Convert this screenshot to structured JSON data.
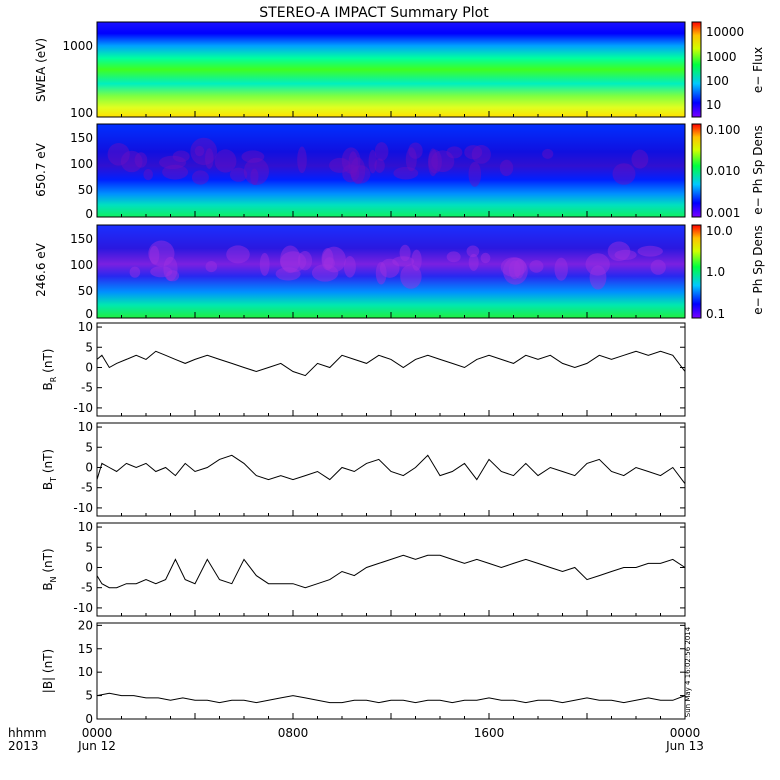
{
  "title": "STEREO-A IMPACT Summary Plot",
  "time_axis": {
    "corner_label_1": "hhmm",
    "corner_label_2": "2013",
    "ticks": [
      {
        "hour": 0,
        "label": "0000",
        "sublabel": "Jun 12"
      },
      {
        "hour": 8,
        "label": "0800",
        "sublabel": ""
      },
      {
        "hour": 16,
        "label": "1600",
        "sublabel": ""
      },
      {
        "hour": 24,
        "label": "0000",
        "sublabel": "Jun 13"
      }
    ],
    "range_hours": [
      0,
      24
    ]
  },
  "timestamp": "Sun May  4 16:02:56 2014",
  "panels": [
    {
      "id": "swea",
      "ylabel": "SWEA (eV)",
      "colorbar_label": "e− Flux",
      "yticks": [
        "1000",
        "100"
      ],
      "cb_ticks": [
        "10000",
        "1000",
        "100",
        "10"
      ]
    },
    {
      "id": "pad650",
      "ylabel": "650.7 eV",
      "colorbar_label": "e− Ph Sp Dens",
      "yticks": [
        "150",
        "100",
        "50",
        "0"
      ],
      "cb_ticks": [
        "0.100",
        "0.010",
        "0.001"
      ]
    },
    {
      "id": "pad246",
      "ylabel": "246.6 eV",
      "colorbar_label": "e− Ph Sp Dens",
      "yticks": [
        "150",
        "100",
        "50",
        "0"
      ],
      "cb_ticks": [
        "10.0",
        "1.0",
        "0.1"
      ]
    }
  ],
  "chart_data": [
    {
      "type": "heatmap",
      "title": "STEREO-A IMPACT Summary Plot",
      "ylabel": "SWEA (eV)",
      "y_scale": "log",
      "ylim": [
        90,
        2000
      ],
      "colorbar": {
        "label": "e− Flux",
        "scale": "log",
        "range": [
          5,
          15000
        ]
      },
      "description_values": {
        "100": 6000,
        "300": 1200,
        "1000": 40
      }
    },
    {
      "type": "heatmap",
      "ylabel": "650.7 eV",
      "ylim": [
        0,
        180
      ],
      "colorbar": {
        "label": "e− Ph Sp Dens",
        "scale": "log",
        "range": [
          0.001,
          0.1
        ]
      }
    },
    {
      "type": "heatmap",
      "ylabel": "246.6 eV",
      "ylim": [
        0,
        180
      ],
      "colorbar": {
        "label": "e− Ph Sp Dens",
        "scale": "log",
        "range": [
          0.1,
          10.0
        ]
      }
    },
    {
      "type": "line",
      "id": "br",
      "ylabel": "B",
      "ylabel_sub": "R",
      "ylabel_unit": "(nT)",
      "ylim": [
        -12,
        11
      ],
      "yticks": [
        10,
        5,
        0,
        -5,
        -10
      ],
      "x": [
        0,
        0.2,
        0.5,
        0.8,
        1.2,
        1.6,
        2.0,
        2.4,
        2.8,
        3.2,
        3.6,
        4.0,
        4.5,
        5.0,
        5.5,
        6.0,
        6.5,
        7.0,
        7.5,
        8.0,
        8.5,
        9.0,
        9.5,
        10.0,
        10.5,
        11.0,
        11.5,
        12.0,
        12.5,
        13.0,
        13.5,
        14.0,
        14.5,
        15.0,
        15.5,
        16.0,
        16.5,
        17.0,
        17.5,
        18.0,
        18.5,
        19.0,
        19.5,
        20.0,
        20.5,
        21.0,
        21.5,
        22.0,
        22.5,
        23.0,
        23.5,
        24.0
      ],
      "y": [
        2,
        3,
        0,
        1,
        2,
        3,
        2,
        4,
        3,
        2,
        1,
        2,
        3,
        2,
        1,
        0,
        -1,
        0,
        1,
        -1,
        -2,
        1,
        0,
        3,
        2,
        1,
        3,
        2,
        0,
        2,
        3,
        2,
        1,
        0,
        2,
        3,
        2,
        1,
        3,
        2,
        3,
        1,
        0,
        1,
        3,
        2,
        3,
        4,
        3,
        4,
        3,
        -1
      ]
    },
    {
      "type": "line",
      "id": "bt",
      "ylabel": "B",
      "ylabel_sub": "T",
      "ylabel_unit": "(nT)",
      "ylim": [
        -12,
        11
      ],
      "yticks": [
        10,
        5,
        0,
        -5,
        -10
      ],
      "x": [
        0,
        0.2,
        0.5,
        0.8,
        1.2,
        1.6,
        2.0,
        2.4,
        2.8,
        3.2,
        3.6,
        4.0,
        4.5,
        5.0,
        5.5,
        6.0,
        6.5,
        7.0,
        7.5,
        8.0,
        8.5,
        9.0,
        9.5,
        10.0,
        10.5,
        11.0,
        11.5,
        12.0,
        12.5,
        13.0,
        13.5,
        14.0,
        14.5,
        15.0,
        15.5,
        16.0,
        16.5,
        17.0,
        17.5,
        18.0,
        18.5,
        19.0,
        19.5,
        20.0,
        20.5,
        21.0,
        21.5,
        22.0,
        22.5,
        23.0,
        23.5,
        24.0
      ],
      "y": [
        -3,
        1,
        0,
        -1,
        1,
        0,
        1,
        -1,
        0,
        -2,
        1,
        -1,
        0,
        2,
        3,
        1,
        -2,
        -3,
        -2,
        -3,
        -2,
        -1,
        -3,
        0,
        -1,
        1,
        2,
        -1,
        -2,
        0,
        3,
        -2,
        -1,
        1,
        -3,
        2,
        -1,
        -2,
        1,
        -2,
        0,
        -1,
        -2,
        1,
        2,
        -1,
        -2,
        0,
        -1,
        -2,
        0,
        -4
      ]
    },
    {
      "type": "line",
      "id": "bn",
      "ylabel": "B",
      "ylabel_sub": "N",
      "ylabel_unit": "(nT)",
      "ylim": [
        -12,
        11
      ],
      "yticks": [
        10,
        5,
        0,
        -5,
        -10
      ],
      "x": [
        0,
        0.2,
        0.5,
        0.8,
        1.2,
        1.6,
        2.0,
        2.4,
        2.8,
        3.2,
        3.6,
        4.0,
        4.5,
        5.0,
        5.5,
        6.0,
        6.5,
        7.0,
        7.5,
        8.0,
        8.5,
        9.0,
        9.5,
        10.0,
        10.5,
        11.0,
        11.5,
        12.0,
        12.5,
        13.0,
        13.5,
        14.0,
        14.5,
        15.0,
        15.5,
        16.0,
        16.5,
        17.0,
        17.5,
        18.0,
        18.5,
        19.0,
        19.5,
        20.0,
        20.5,
        21.0,
        21.5,
        22.0,
        22.5,
        23.0,
        23.5,
        24.0
      ],
      "y": [
        -2,
        -4,
        -5,
        -5,
        -4,
        -4,
        -3,
        -4,
        -3,
        2,
        -3,
        -4,
        2,
        -3,
        -4,
        2,
        -2,
        -4,
        -4,
        -4,
        -5,
        -4,
        -3,
        -1,
        -2,
        0,
        1,
        2,
        3,
        2,
        3,
        3,
        2,
        1,
        2,
        1,
        0,
        1,
        2,
        1,
        0,
        -1,
        0,
        -3,
        -2,
        -1,
        0,
        0,
        1,
        1,
        2,
        0
      ]
    },
    {
      "type": "line",
      "id": "bmag",
      "ylabel": "|B| (nT)",
      "ylim": [
        0,
        20.5
      ],
      "yticks": [
        20,
        15,
        10,
        5,
        0
      ],
      "x": [
        0,
        0.5,
        1.0,
        1.5,
        2.0,
        2.5,
        3.0,
        3.5,
        4.0,
        4.5,
        5.0,
        5.5,
        6.0,
        6.5,
        7.0,
        7.5,
        8.0,
        8.5,
        9.0,
        9.5,
        10.0,
        10.5,
        11.0,
        11.5,
        12.0,
        12.5,
        13.0,
        13.5,
        14.0,
        14.5,
        15.0,
        15.5,
        16.0,
        16.5,
        17.0,
        17.5,
        18.0,
        18.5,
        19.0,
        19.5,
        20.0,
        20.5,
        21.0,
        21.5,
        22.0,
        22.5,
        23.0,
        23.5,
        24.0
      ],
      "y": [
        5,
        5.5,
        5,
        5,
        4.5,
        4.5,
        4,
        4.5,
        4,
        4,
        3.5,
        4,
        4,
        3.5,
        4,
        4.5,
        5,
        4.5,
        4,
        3.5,
        3.5,
        4,
        4,
        3.5,
        4,
        4,
        3.5,
        4,
        4,
        3.5,
        4,
        4,
        4.5,
        4,
        4,
        3.5,
        4,
        4,
        3.5,
        4,
        4.5,
        4,
        4,
        3.5,
        4,
        4.5,
        4,
        4,
        5
      ]
    }
  ]
}
